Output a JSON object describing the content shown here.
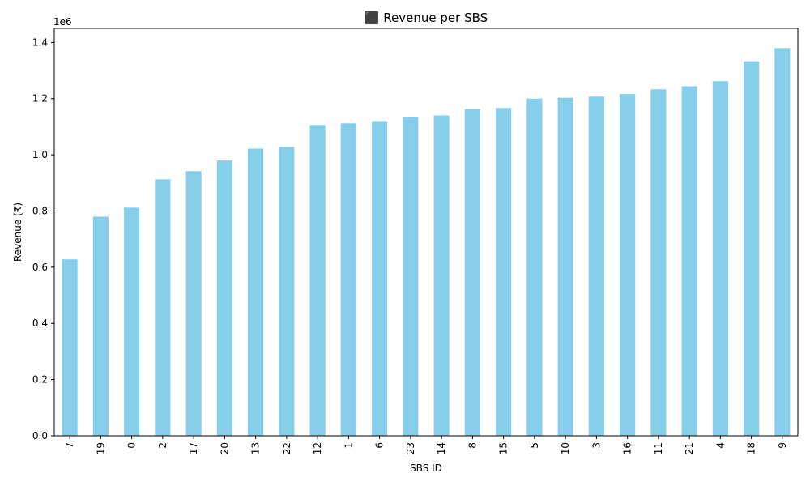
{
  "chart_data": {
    "type": "bar",
    "title": "⬛ Revenue per SBS",
    "xlabel": "SBS ID",
    "ylabel": "Revenue (₹)",
    "offset_label": "1e6",
    "ylim": [
      0,
      1.45
    ],
    "yticks": [
      "0.0",
      "0.2",
      "0.4",
      "0.6",
      "0.8",
      "1.0",
      "1.2",
      "1.4"
    ],
    "bar_color": "#87ceeb",
    "categories": [
      "7",
      "19",
      "0",
      "2",
      "17",
      "20",
      "13",
      "22",
      "12",
      "1",
      "6",
      "23",
      "14",
      "8",
      "15",
      "5",
      "10",
      "3",
      "16",
      "11",
      "21",
      "4",
      "18",
      "9"
    ],
    "values": [
      0.628,
      0.78,
      0.812,
      0.913,
      0.942,
      0.98,
      1.022,
      1.028,
      1.106,
      1.112,
      1.12,
      1.135,
      1.14,
      1.163,
      1.167,
      1.2,
      1.203,
      1.207,
      1.216,
      1.233,
      1.244,
      1.262,
      1.333,
      1.38
    ]
  }
}
